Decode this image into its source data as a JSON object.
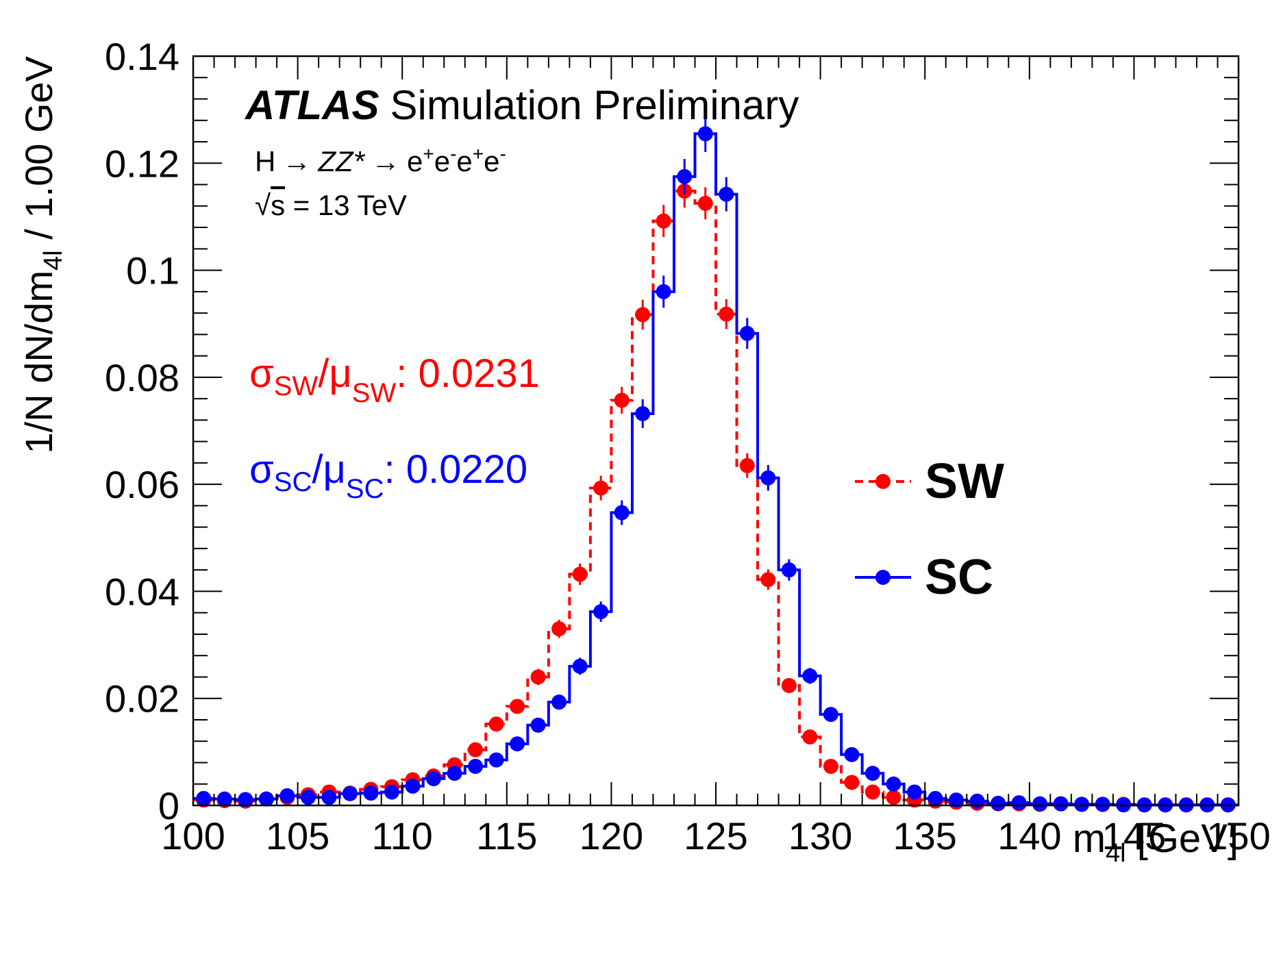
{
  "figure": {
    "experiment": "ATLAS",
    "status": "Simulation Preliminary",
    "process": {
      "p1": "H",
      "arrow1": "→",
      "p2": "ZZ*",
      "arrow2": "→",
      "l1": "e",
      "s1": "+",
      "l2": "e",
      "s2": "-",
      "l3": "e",
      "s3": "+",
      "l4": "e",
      "s4": "-"
    },
    "energy": {
      "sqrt": "√",
      "s": "s",
      "rest": " = 13 TeV"
    },
    "resolution_sw": {
      "sigma": "σ",
      "sub1": "SW",
      "slash": "/",
      "mu": "μ",
      "sub2": "SW",
      "value": ": 0.0231"
    },
    "resolution_sc": {
      "sigma": "σ",
      "sub1": "SC",
      "slash": "/",
      "mu": "μ",
      "sub2": "SC",
      "value": ": 0.0220"
    },
    "colors": {
      "sw": "#ff0000",
      "sc": "#0000ff",
      "axes": "#000000"
    }
  },
  "chart_data": {
    "type": "line",
    "style": "step histogram with markers and error bars",
    "xlabel": {
      "main": "m",
      "sub": "4l",
      "unit": " [GeV]"
    },
    "ylabel": {
      "main": "1/N dN/dm",
      "sub": "4l",
      "rest": " / 1.00 GeV"
    },
    "xlim": [
      100,
      150
    ],
    "ylim": [
      0,
      0.14
    ],
    "x_ticks": [
      100,
      105,
      110,
      115,
      120,
      125,
      130,
      135,
      140,
      145,
      150
    ],
    "x_tick_labels": [
      "100",
      "105",
      "110",
      "115",
      "120",
      "125",
      "130",
      "135",
      "140",
      "145",
      "150"
    ],
    "y_ticks": [
      0,
      0.02,
      0.04,
      0.06,
      0.08,
      0.1,
      0.12,
      0.14
    ],
    "y_tick_labels": [
      "0",
      "0.02",
      "0.04",
      "0.06",
      "0.08",
      "0.1",
      "0.12",
      "0.14"
    ],
    "bin_width": 1,
    "x": [
      100.5,
      101.5,
      102.5,
      103.5,
      104.5,
      105.5,
      106.5,
      107.5,
      108.5,
      109.5,
      110.5,
      111.5,
      112.5,
      113.5,
      114.5,
      115.5,
      116.5,
      117.5,
      118.5,
      119.5,
      120.5,
      121.5,
      122.5,
      123.5,
      124.5,
      125.5,
      126.5,
      127.5,
      128.5,
      129.5,
      130.5,
      131.5,
      132.5,
      133.5,
      134.5,
      135.5,
      136.5,
      137.5,
      138.5,
      139.5,
      140.5,
      141.5,
      142.5,
      143.5,
      144.5,
      145.5,
      146.5,
      147.5,
      148.5,
      149.5
    ],
    "legend_position": "right",
    "series": [
      {
        "name": "SW",
        "color": "#ff0000",
        "line": "dashed",
        "values": [
          0.001,
          0.0009,
          0.0008,
          0.0012,
          0.0015,
          0.002,
          0.0025,
          0.0023,
          0.003,
          0.0035,
          0.0048,
          0.0055,
          0.0076,
          0.0104,
          0.0152,
          0.0185,
          0.024,
          0.033,
          0.0432,
          0.0593,
          0.0757,
          0.0917,
          0.1092,
          0.1148,
          0.1125,
          0.0918,
          0.0635,
          0.0422,
          0.0224,
          0.0128,
          0.0073,
          0.0043,
          0.0025,
          0.0015,
          0.001,
          0.0008,
          0.0006,
          0.0004,
          0.0003,
          0.0003,
          0.0002,
          0.0003,
          0.0002,
          0.0002,
          0.0002,
          0.0001,
          0.0001,
          0.0001,
          0.0001,
          0.0001
        ],
        "errors": [
          0.0003,
          0.0003,
          0.0003,
          0.0003,
          0.0004,
          0.0005,
          0.0005,
          0.0005,
          0.0006,
          0.0006,
          0.0007,
          0.0008,
          0.0009,
          0.001,
          0.0012,
          0.0013,
          0.0015,
          0.0017,
          0.002,
          0.0023,
          0.0025,
          0.0028,
          0.003,
          0.0031,
          0.003,
          0.0028,
          0.0023,
          0.0019,
          0.0014,
          0.0011,
          0.0008,
          0.0006,
          0.0005,
          0.0004,
          0.0003,
          0.0003,
          0.0002,
          0.0002,
          0.0002,
          0.0002,
          0.0001,
          0.0002,
          0.0001,
          0.0001,
          0.0001,
          0.0001,
          0.0001,
          0.0001,
          0.0001,
          0.0001
        ]
      },
      {
        "name": "SC",
        "color": "#0000ff",
        "line": "solid",
        "values": [
          0.0013,
          0.0012,
          0.0011,
          0.0012,
          0.0018,
          0.0015,
          0.0015,
          0.0022,
          0.0023,
          0.0025,
          0.0036,
          0.005,
          0.006,
          0.0073,
          0.0085,
          0.0115,
          0.015,
          0.0193,
          0.026,
          0.0362,
          0.0547,
          0.0732,
          0.096,
          0.1175,
          0.1255,
          0.1142,
          0.0882,
          0.0612,
          0.044,
          0.0242,
          0.017,
          0.0095,
          0.006,
          0.004,
          0.0025,
          0.0013,
          0.001,
          0.0008,
          0.0004,
          0.0005,
          0.0003,
          0.0003,
          0.0002,
          0.0002,
          0.0001,
          0.0001,
          0.0001,
          0.0001,
          0.0001,
          0.0001
        ],
        "errors": [
          0.0003,
          0.0003,
          0.0003,
          0.0003,
          0.0004,
          0.0004,
          0.0004,
          0.0005,
          0.0005,
          0.0005,
          0.0006,
          0.0007,
          0.0008,
          0.0009,
          0.0009,
          0.0011,
          0.0012,
          0.0014,
          0.0016,
          0.0019,
          0.0023,
          0.0027,
          0.003,
          0.0033,
          0.0034,
          0.0032,
          0.0029,
          0.0024,
          0.002,
          0.0015,
          0.0012,
          0.0009,
          0.0007,
          0.0006,
          0.0005,
          0.0004,
          0.0003,
          0.0003,
          0.0002,
          0.0002,
          0.0002,
          0.0002,
          0.0001,
          0.0001,
          0.0001,
          0.0001,
          0.0001,
          0.0001,
          0.0001,
          0.0001
        ]
      }
    ]
  }
}
